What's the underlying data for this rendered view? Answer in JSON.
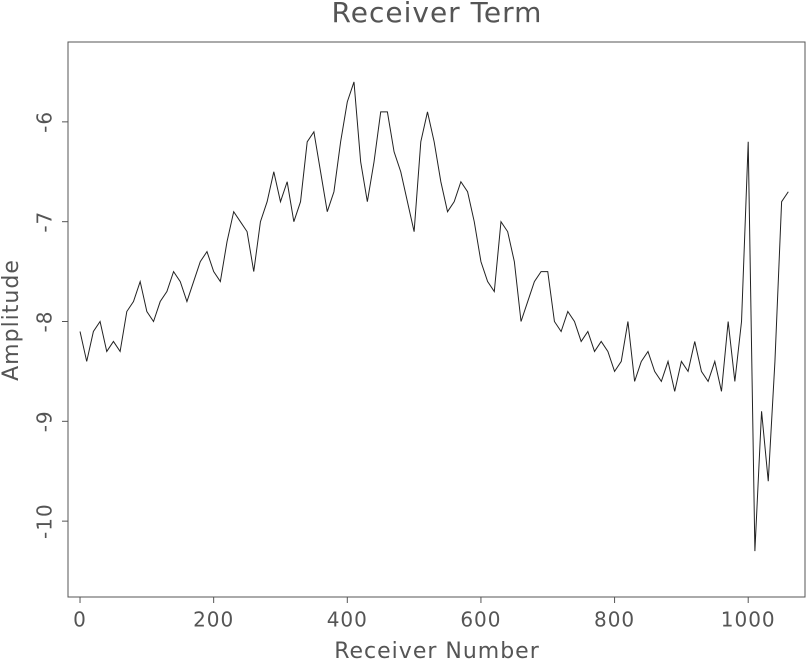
{
  "chart_data": {
    "type": "line",
    "title": "Receiver Term",
    "x_label": "Receiver Number",
    "y_label": "Amplitude",
    "x": [
      0,
      10,
      20,
      30,
      40,
      50,
      60,
      70,
      80,
      90,
      100,
      110,
      120,
      130,
      140,
      150,
      160,
      170,
      180,
      190,
      200,
      210,
      220,
      230,
      240,
      250,
      260,
      270,
      280,
      290,
      300,
      310,
      320,
      330,
      340,
      350,
      360,
      370,
      380,
      390,
      400,
      410,
      420,
      430,
      440,
      450,
      460,
      470,
      480,
      490,
      500,
      510,
      520,
      530,
      540,
      550,
      560,
      570,
      580,
      590,
      600,
      610,
      620,
      630,
      640,
      650,
      660,
      670,
      680,
      690,
      700,
      710,
      720,
      730,
      740,
      750,
      760,
      770,
      780,
      790,
      800,
      810,
      820,
      830,
      840,
      850,
      860,
      870,
      880,
      890,
      900,
      910,
      920,
      930,
      940,
      950,
      960,
      970,
      980,
      990,
      1000,
      1010,
      1020,
      1030,
      1040,
      1050,
      1060
    ],
    "series": [
      {
        "name": "Receiver Term",
        "color": "#222222",
        "values": [
          -8.1,
          -8.4,
          -8.1,
          -8.0,
          -8.3,
          -8.2,
          -8.3,
          -7.9,
          -7.8,
          -7.6,
          -7.9,
          -8.0,
          -7.8,
          -7.7,
          -7.5,
          -7.6,
          -7.8,
          -7.6,
          -7.4,
          -7.3,
          -7.5,
          -7.6,
          -7.2,
          -6.9,
          -7.0,
          -7.1,
          -7.5,
          -7.0,
          -6.8,
          -6.5,
          -6.8,
          -6.6,
          -7.0,
          -6.8,
          -6.2,
          -6.1,
          -6.5,
          -6.9,
          -6.7,
          -6.2,
          -5.8,
          -5.6,
          -6.4,
          -6.8,
          -6.4,
          -5.9,
          -5.9,
          -6.3,
          -6.5,
          -6.8,
          -7.1,
          -6.2,
          -5.9,
          -6.2,
          -6.6,
          -6.9,
          -6.8,
          -6.6,
          -6.7,
          -7.0,
          -7.4,
          -7.6,
          -7.7,
          -7.0,
          -7.1,
          -7.4,
          -8.0,
          -7.8,
          -7.6,
          -7.5,
          -7.5,
          -8.0,
          -8.1,
          -7.9,
          -8.0,
          -8.2,
          -8.1,
          -8.3,
          -8.2,
          -8.3,
          -8.5,
          -8.4,
          -8.0,
          -8.6,
          -8.4,
          -8.3,
          -8.5,
          -8.6,
          -8.4,
          -8.7,
          -8.4,
          -8.5,
          -8.2,
          -8.5,
          -8.6,
          -8.4,
          -8.7,
          -8.0,
          -8.6,
          -8.0,
          -6.2,
          -10.3,
          -8.9,
          -9.6,
          -8.4,
          -6.8,
          -6.7
        ]
      }
    ],
    "xlim": [
      -18,
      1085
    ],
    "ylim": [
      -10.76,
      -5.2
    ],
    "xticks": [
      0,
      200,
      400,
      600,
      800,
      1000
    ],
    "yticks": [
      -10,
      -9,
      -8,
      -7,
      -6
    ]
  }
}
